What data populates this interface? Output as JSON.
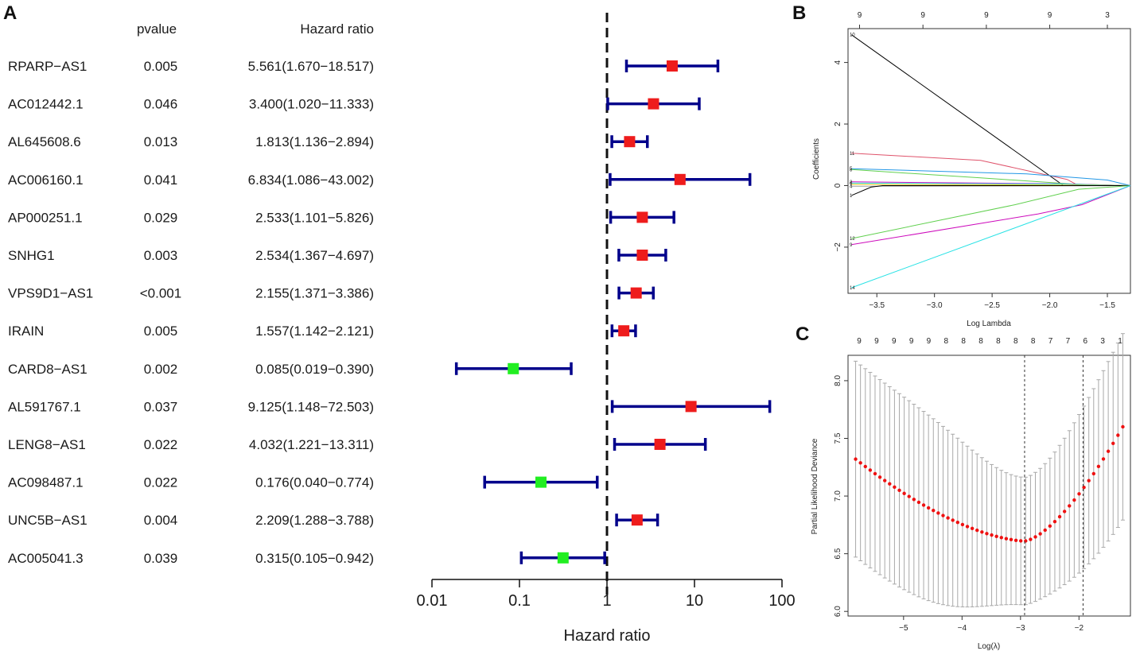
{
  "chart_data": [
    {
      "panel": "A",
      "type": "forest",
      "columns": {
        "pvalue": "pvalue",
        "hr": "Hazard ratio"
      },
      "xlabel": "Hazard ratio",
      "xscale": "log",
      "xlim": [
        0.01,
        100
      ],
      "xticks": [
        "0.01",
        "0.1",
        "1",
        "10",
        "100"
      ],
      "reference_line": 1,
      "rows": [
        {
          "gene": "RPARP−AS1",
          "pvalue": "0.005",
          "hr_text": "5.561(1.670−18.517)",
          "hr": 5.561,
          "lo": 1.67,
          "hi": 18.517,
          "color": "#ee1c1c"
        },
        {
          "gene": "AC012442.1",
          "pvalue": "0.046",
          "hr_text": "3.400(1.020−11.333)",
          "hr": 3.4,
          "lo": 1.02,
          "hi": 11.333,
          "color": "#ee1c1c"
        },
        {
          "gene": "AL645608.6",
          "pvalue": "0.013",
          "hr_text": "1.813(1.136−2.894)",
          "hr": 1.813,
          "lo": 1.136,
          "hi": 2.894,
          "color": "#ee1c1c"
        },
        {
          "gene": "AC006160.1",
          "pvalue": "0.041",
          "hr_text": "6.834(1.086−43.002)",
          "hr": 6.834,
          "lo": 1.086,
          "hi": 43.002,
          "color": "#ee1c1c"
        },
        {
          "gene": "AP000251.1",
          "pvalue": "0.029",
          "hr_text": "2.533(1.101−5.826)",
          "hr": 2.533,
          "lo": 1.101,
          "hi": 5.826,
          "color": "#ee1c1c"
        },
        {
          "gene": "SNHG1",
          "pvalue": "0.003",
          "hr_text": "2.534(1.367−4.697)",
          "hr": 2.534,
          "lo": 1.367,
          "hi": 4.697,
          "color": "#ee1c1c"
        },
        {
          "gene": "VPS9D1−AS1",
          "pvalue": "<0.001",
          "hr_text": "2.155(1.371−3.386)",
          "hr": 2.155,
          "lo": 1.371,
          "hi": 3.386,
          "color": "#ee1c1c"
        },
        {
          "gene": "IRAIN",
          "pvalue": "0.005",
          "hr_text": "1.557(1.142−2.121)",
          "hr": 1.557,
          "lo": 1.142,
          "hi": 2.121,
          "color": "#ee1c1c"
        },
        {
          "gene": "CARD8−AS1",
          "pvalue": "0.002",
          "hr_text": "0.085(0.019−0.390)",
          "hr": 0.085,
          "lo": 0.019,
          "hi": 0.39,
          "color": "#22ee22"
        },
        {
          "gene": "AL591767.1",
          "pvalue": "0.037",
          "hr_text": "9.125(1.148−72.503)",
          "hr": 9.125,
          "lo": 1.148,
          "hi": 72.503,
          "color": "#ee1c1c"
        },
        {
          "gene": "LENG8−AS1",
          "pvalue": "0.022",
          "hr_text": "4.032(1.221−13.311)",
          "hr": 4.032,
          "lo": 1.221,
          "hi": 13.311,
          "color": "#ee1c1c"
        },
        {
          "gene": "AC098487.1",
          "pvalue": "0.022",
          "hr_text": "0.176(0.040−0.774)",
          "hr": 0.176,
          "lo": 0.04,
          "hi": 0.774,
          "color": "#22ee22"
        },
        {
          "gene": "UNC5B−AS1",
          "pvalue": "0.004",
          "hr_text": "2.209(1.288−3.788)",
          "hr": 2.209,
          "lo": 1.288,
          "hi": 3.788,
          "color": "#ee1c1c"
        },
        {
          "gene": "AC005041.3",
          "pvalue": "0.039",
          "hr_text": "0.315(0.105−0.942)",
          "hr": 0.315,
          "lo": 0.105,
          "hi": 0.942,
          "color": "#22ee22"
        }
      ],
      "ci_color": "#00008b"
    },
    {
      "panel": "B",
      "type": "line",
      "xlabel": "Log Lambda",
      "ylabel": "Coefficients",
      "xlim": [
        -3.75,
        -1.3
      ],
      "ylim": [
        -3.5,
        5.1
      ],
      "xticks": [
        -3.5,
        -3.0,
        -2.5,
        -2.0,
        -1.5
      ],
      "xtick_labels": [
        "−3.5",
        "−3.0",
        "−2.5",
        "−2.0",
        "−1.5"
      ],
      "yticks": [
        -2,
        0,
        2,
        4
      ],
      "ytick_labels": [
        "−2",
        "0",
        "2",
        "4"
      ],
      "top_labels": [
        {
          "x": -3.65,
          "label": "9"
        },
        {
          "x": -3.1,
          "label": "9"
        },
        {
          "x": -2.55,
          "label": "9"
        },
        {
          "x": -2.0,
          "label": "9"
        },
        {
          "x": -1.5,
          "label": "3"
        }
      ],
      "series": [
        {
          "name": "10",
          "color": "#000000",
          "x": [
            -3.72,
            -1.88,
            -1.3
          ],
          "y": [
            4.9,
            0.0,
            0.0
          ]
        },
        {
          "name": "11",
          "color": "#df536b",
          "x": [
            -3.72,
            -2.6,
            -1.85,
            -1.75
          ],
          "y": [
            1.05,
            0.82,
            0.2,
            0.0
          ]
        },
        {
          "name": "5",
          "color": "#2297e6",
          "x": [
            -3.72,
            -2.2,
            -1.5,
            -1.3
          ],
          "y": [
            0.55,
            0.38,
            0.18,
            0.0
          ]
        },
        {
          "name": "8",
          "color": "#61d04f",
          "x": [
            -3.72,
            -2.6,
            -1.8,
            -1.3
          ],
          "y": [
            0.52,
            0.25,
            0.05,
            0.0
          ]
        },
        {
          "name": "2",
          "color": "#cd0bbc",
          "x": [
            -3.72,
            -1.9,
            -1.3
          ],
          "y": [
            0.12,
            0.06,
            0.0
          ]
        },
        {
          "name": "6",
          "color": "#28e2e5",
          "x": [
            -3.72,
            -1.9,
            -1.3
          ],
          "y": [
            0.08,
            0.05,
            0.0
          ]
        },
        {
          "name": "7",
          "color": "#f5c710",
          "x": [
            -3.72,
            -1.9,
            -1.3
          ],
          "y": [
            0.04,
            0.02,
            0.0
          ]
        },
        {
          "name": "4",
          "color": "#9e9e9e",
          "x": [
            -3.72,
            -1.9,
            -1.3
          ],
          "y": [
            -0.02,
            -0.01,
            0.0
          ]
        },
        {
          "name": "1",
          "color": "#000000",
          "x": [
            -3.72,
            -3.55,
            -3.45,
            -1.3
          ],
          "y": [
            -0.32,
            -0.05,
            0.0,
            0.0
          ]
        },
        {
          "name": "12",
          "color": "#61d04f",
          "x": [
            -3.72,
            -2.3,
            -1.75,
            -1.3
          ],
          "y": [
            -1.72,
            -0.62,
            -0.12,
            0.0
          ]
        },
        {
          "name": "9",
          "color": "#cd0bbc",
          "x": [
            -3.72,
            -2.1,
            -1.72,
            -1.3
          ],
          "y": [
            -1.92,
            -0.92,
            -0.62,
            0.0
          ]
        },
        {
          "name": "14",
          "color": "#28e2e5",
          "x": [
            -3.72,
            -1.3
          ],
          "y": [
            -3.32,
            0.0
          ]
        }
      ]
    },
    {
      "panel": "C",
      "type": "errorbar",
      "xlabel": "Log(λ)",
      "ylabel": "Partial Likelihood Deviance",
      "xlim": [
        -5.95,
        -1.12
      ],
      "ylim": [
        5.96,
        8.22
      ],
      "xticks": [
        -5,
        -4,
        -3,
        -2
      ],
      "xtick_labels": [
        "−5",
        "−4",
        "−3",
        "−2"
      ],
      "yticks": [
        6.0,
        6.5,
        7.0,
        7.5,
        8.0
      ],
      "ytick_labels": [
        "6.0",
        "6.5",
        "7.0",
        "7.5",
        "8.0"
      ],
      "top_labels": [
        "9",
        "9",
        "9",
        "9",
        "9",
        "8",
        "8",
        "8",
        "8",
        "8",
        "8",
        "7",
        "7",
        "6",
        "3",
        "1"
      ],
      "vlines": [
        -2.93,
        -1.93
      ],
      "x_start": -5.82,
      "x_end": -1.25,
      "points": 56,
      "center_start": 7.32,
      "center_min": 6.61,
      "center_end": 7.6,
      "half_width": 0.85,
      "point_color": "#ee1111",
      "bar_color": "#a9a9a9"
    }
  ],
  "panel_letters": [
    "A",
    "B",
    "C"
  ]
}
